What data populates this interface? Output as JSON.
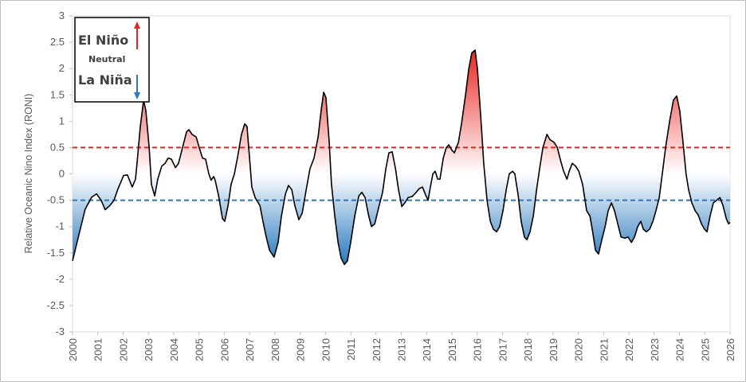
{
  "chart_data": {
    "type": "line",
    "y_label": "Relative Oceanic Nino Index (RONI)",
    "legend_labels": {
      "up": "El Niño",
      "mid": "Neutral",
      "down": "La Niña"
    },
    "xlim": [
      2000,
      2026
    ],
    "xticks": [
      2000,
      2001,
      2002,
      2003,
      2004,
      2005,
      2006,
      2007,
      2008,
      2009,
      2010,
      2011,
      2012,
      2013,
      2014,
      2015,
      2016,
      2017,
      2018,
      2019,
      2020,
      2021,
      2022,
      2023,
      2024,
      2025,
      2026
    ],
    "ylim": [
      -3,
      3
    ],
    "yticks": [
      3,
      2.5,
      2,
      1.5,
      1,
      0.5,
      0,
      -0.5,
      -1,
      -1.5,
      -2,
      -2.5,
      -3
    ],
    "thresholds": [
      {
        "value": 0.5,
        "color": "#e8231f"
      },
      {
        "value": -0.5,
        "color": "#2f75c0"
      }
    ],
    "positive_color": "#e8231f",
    "negative_color": "#2c7bbf",
    "series": [
      {
        "color": "#000000",
        "x": [
          2000.0,
          2000.28,
          2000.5,
          2000.76,
          2000.95,
          2001.13,
          2001.29,
          2001.48,
          2001.64,
          2001.8,
          2002.02,
          2002.17,
          2002.36,
          2002.49,
          2002.55,
          2002.68,
          2002.81,
          2002.9,
          2003.03,
          2003.12,
          2003.25,
          2003.37,
          2003.53,
          2003.66,
          2003.78,
          2003.91,
          2004.07,
          2004.19,
          2004.35,
          2004.51,
          2004.6,
          2004.73,
          2004.89,
          2005.01,
          2005.14,
          2005.26,
          2005.39,
          2005.48,
          2005.58,
          2005.64,
          2005.77,
          2005.93,
          2006.02,
          2006.15,
          2006.27,
          2006.4,
          2006.52,
          2006.68,
          2006.81,
          2006.9,
          2007.0,
          2007.09,
          2007.22,
          2007.41,
          2007.53,
          2007.66,
          2007.79,
          2007.97,
          2008.13,
          2008.26,
          2008.42,
          2008.54,
          2008.67,
          2008.79,
          2008.95,
          2009.08,
          2009.24,
          2009.39,
          2009.55,
          2009.71,
          2009.83,
          2009.93,
          2010.02,
          2010.15,
          2010.24,
          2010.37,
          2010.5,
          2010.62,
          2010.75,
          2010.87,
          2011.0,
          2011.16,
          2011.32,
          2011.44,
          2011.57,
          2011.69,
          2011.82,
          2011.95,
          2012.1,
          2012.26,
          2012.39,
          2012.51,
          2012.64,
          2012.77,
          2012.89,
          2013.02,
          2013.14,
          2013.27,
          2013.43,
          2013.59,
          2013.71,
          2013.84,
          2013.96,
          2014.06,
          2014.15,
          2014.25,
          2014.34,
          2014.44,
          2014.53,
          2014.66,
          2014.78,
          2014.88,
          2015.0,
          2015.1,
          2015.26,
          2015.38,
          2015.54,
          2015.67,
          2015.79,
          2015.92,
          2016.01,
          2016.14,
          2016.26,
          2016.39,
          2016.52,
          2016.64,
          2016.77,
          2016.89,
          2017.02,
          2017.15,
          2017.27,
          2017.4,
          2017.49,
          2017.62,
          2017.74,
          2017.87,
          2017.97,
          2018.09,
          2018.22,
          2018.35,
          2018.47,
          2018.6,
          2018.76,
          2018.88,
          2019.04,
          2019.17,
          2019.3,
          2019.42,
          2019.55,
          2019.64,
          2019.76,
          2019.89,
          2020.02,
          2020.17,
          2020.33,
          2020.46,
          2020.55,
          2020.68,
          2020.8,
          2020.93,
          2021.06,
          2021.18,
          2021.31,
          2021.43,
          2021.56,
          2021.69,
          2021.84,
          2021.97,
          2022.1,
          2022.22,
          2022.35,
          2022.47,
          2022.57,
          2022.69,
          2022.82,
          2022.95,
          2023.07,
          2023.2,
          2023.32,
          2023.45,
          2023.61,
          2023.76,
          2023.89,
          2024.01,
          2024.14,
          2024.26,
          2024.36,
          2024.49,
          2024.62,
          2024.74,
          2024.87,
          2024.99,
          2025.09,
          2025.21,
          2025.34,
          2025.47,
          2025.6,
          2025.72,
          2025.85,
          2025.94,
          2026.0
        ],
        "values": [
          -1.65,
          -1.1,
          -0.67,
          -0.44,
          -0.38,
          -0.5,
          -0.68,
          -0.6,
          -0.5,
          -0.28,
          -0.03,
          -0.02,
          -0.25,
          -0.1,
          0.2,
          0.9,
          1.4,
          1.2,
          0.5,
          -0.2,
          -0.42,
          -0.1,
          0.15,
          0.2,
          0.3,
          0.28,
          0.12,
          0.2,
          0.5,
          0.8,
          0.84,
          0.75,
          0.7,
          0.5,
          0.3,
          0.28,
          0.0,
          -0.12,
          -0.05,
          -0.12,
          -0.4,
          -0.85,
          -0.9,
          -0.6,
          -0.2,
          0.0,
          0.3,
          0.75,
          0.95,
          0.9,
          0.3,
          -0.25,
          -0.45,
          -0.6,
          -0.9,
          -1.2,
          -1.45,
          -1.58,
          -1.3,
          -0.8,
          -0.38,
          -0.22,
          -0.3,
          -0.6,
          -0.87,
          -0.75,
          -0.3,
          0.1,
          0.3,
          0.7,
          1.2,
          1.55,
          1.45,
          0.6,
          -0.2,
          -0.8,
          -1.3,
          -1.6,
          -1.72,
          -1.65,
          -1.3,
          -0.8,
          -0.42,
          -0.35,
          -0.45,
          -0.75,
          -1.0,
          -0.95,
          -0.65,
          -0.35,
          0.1,
          0.4,
          0.42,
          0.1,
          -0.3,
          -0.62,
          -0.55,
          -0.45,
          -0.43,
          -0.35,
          -0.28,
          -0.25,
          -0.4,
          -0.5,
          -0.25,
          0.0,
          0.05,
          -0.1,
          -0.1,
          0.3,
          0.5,
          0.55,
          0.45,
          0.4,
          0.6,
          0.95,
          1.5,
          2.0,
          2.3,
          2.35,
          2.0,
          1.1,
          0.2,
          -0.5,
          -0.9,
          -1.05,
          -1.1,
          -1.0,
          -0.7,
          -0.3,
          0.0,
          0.05,
          0.0,
          -0.4,
          -0.9,
          -1.2,
          -1.25,
          -1.1,
          -0.8,
          -0.3,
          0.1,
          0.5,
          0.75,
          0.65,
          0.6,
          0.5,
          0.25,
          0.05,
          -0.1,
          0.05,
          0.2,
          0.15,
          0.05,
          -0.2,
          -0.7,
          -0.8,
          -1.05,
          -1.45,
          -1.52,
          -1.25,
          -1.0,
          -0.7,
          -0.55,
          -0.7,
          -0.95,
          -1.2,
          -1.22,
          -1.2,
          -1.3,
          -1.2,
          -1.0,
          -0.9,
          -1.05,
          -1.1,
          -1.05,
          -0.9,
          -0.7,
          -0.45,
          0.0,
          0.5,
          1.0,
          1.4,
          1.48,
          1.2,
          0.6,
          0.0,
          -0.3,
          -0.55,
          -0.7,
          -0.78,
          -0.95,
          -1.05,
          -1.1,
          -0.8,
          -0.55,
          -0.5,
          -0.45,
          -0.6,
          -0.85,
          -0.95,
          -0.92
        ]
      }
    ]
  }
}
